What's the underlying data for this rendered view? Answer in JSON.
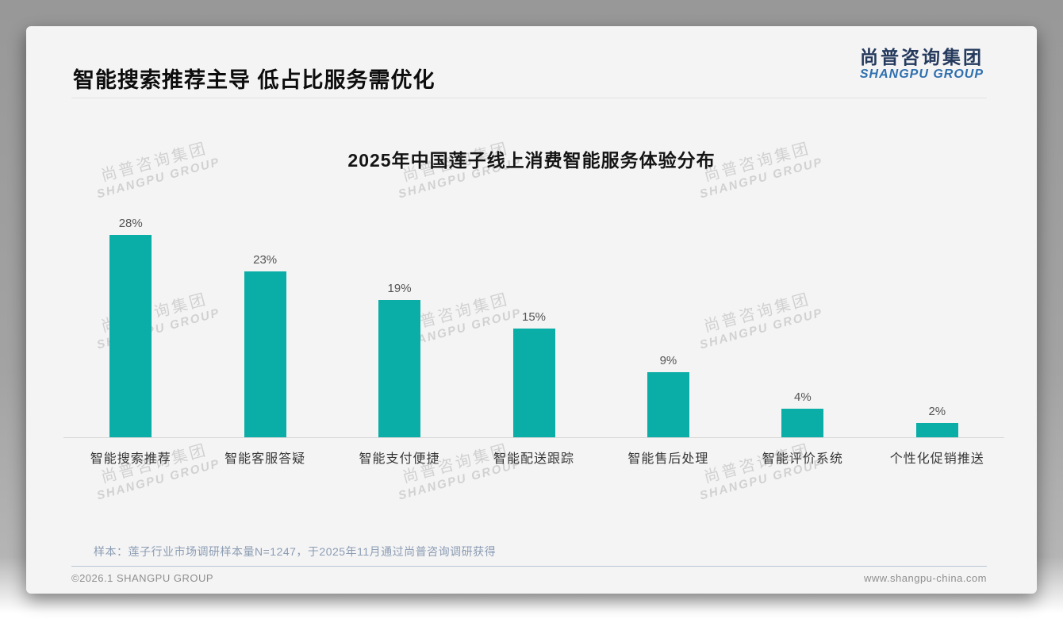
{
  "page": {
    "title": "智能搜索推荐主导 低占比服务需优化",
    "logo": {
      "cn": "尚普咨询集团",
      "en": "SHANGPU GROUP"
    },
    "watermark": {
      "cn": "尚普咨询集团",
      "en": "SHANGPU GROUP"
    },
    "sample_note": "样本：莲子行业市场调研样本量N=1247，于2025年11月通过尚普咨询调研获得",
    "footer_left": "©2026.1 SHANGPU GROUP",
    "footer_right": "www.shangpu-china.com"
  },
  "colors": {
    "bar": "#0baea6",
    "logo_cn": "#253a5d",
    "logo_en": "#2e6fae",
    "value_label": "#555555",
    "category_label": "#363636"
  },
  "chart_data": {
    "type": "bar",
    "title": "2025年中国莲子线上消费智能服务体验分布",
    "categories": [
      "智能搜索推荐",
      "智能客服答疑",
      "智能支付便捷",
      "智能配送跟踪",
      "智能售后处理",
      "智能评价系统",
      "个性化促销推送"
    ],
    "values": [
      28,
      23,
      19,
      15,
      9,
      4,
      2
    ],
    "value_labels": [
      "28%",
      "23%",
      "19%",
      "15%",
      "9%",
      "4%",
      "2%"
    ],
    "unit": "%",
    "ylabel": "",
    "xlabel": "",
    "ylim": [
      0,
      30
    ],
    "grid": false,
    "legend": false,
    "bar_color": "#0baea6"
  }
}
